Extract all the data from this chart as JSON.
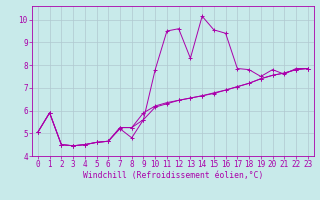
{
  "background_color": "#c8eaea",
  "grid_color": "#b0c8d0",
  "line_color": "#aa00aa",
  "spine_color": "#aa00aa",
  "xlim": [
    -0.5,
    23.5
  ],
  "ylim": [
    4.0,
    10.6
  ],
  "xlabel": "Windchill (Refroidissement éolien,°C)",
  "xticks": [
    0,
    1,
    2,
    3,
    4,
    5,
    6,
    7,
    8,
    9,
    10,
    11,
    12,
    13,
    14,
    15,
    16,
    17,
    18,
    19,
    20,
    21,
    22,
    23
  ],
  "yticks": [
    4,
    5,
    6,
    7,
    8,
    9,
    10
  ],
  "series1": [
    [
      0,
      5.05
    ],
    [
      1,
      5.9
    ],
    [
      2,
      4.5
    ],
    [
      3,
      4.45
    ],
    [
      4,
      4.5
    ],
    [
      5,
      4.6
    ],
    [
      6,
      4.65
    ],
    [
      7,
      5.2
    ],
    [
      8,
      4.8
    ],
    [
      9,
      5.6
    ],
    [
      10,
      7.8
    ],
    [
      11,
      9.5
    ],
    [
      12,
      9.6
    ],
    [
      13,
      8.3
    ],
    [
      14,
      10.15
    ],
    [
      15,
      9.55
    ],
    [
      16,
      9.4
    ],
    [
      17,
      7.85
    ],
    [
      18,
      7.8
    ],
    [
      19,
      7.5
    ],
    [
      20,
      7.8
    ],
    [
      21,
      7.6
    ],
    [
      22,
      7.85
    ],
    [
      23,
      7.85
    ]
  ],
  "series2": [
    [
      0,
      5.05
    ],
    [
      1,
      5.9
    ],
    [
      2,
      4.5
    ],
    [
      3,
      4.45
    ],
    [
      4,
      4.5
    ],
    [
      5,
      4.6
    ],
    [
      6,
      4.65
    ],
    [
      7,
      5.25
    ],
    [
      8,
      5.25
    ],
    [
      9,
      5.9
    ],
    [
      10,
      6.2
    ],
    [
      11,
      6.35
    ],
    [
      12,
      6.45
    ],
    [
      13,
      6.55
    ],
    [
      14,
      6.65
    ],
    [
      15,
      6.75
    ],
    [
      16,
      6.9
    ],
    [
      17,
      7.05
    ],
    [
      18,
      7.2
    ],
    [
      19,
      7.4
    ],
    [
      20,
      7.55
    ],
    [
      21,
      7.65
    ],
    [
      22,
      7.8
    ],
    [
      23,
      7.85
    ]
  ],
  "series3": [
    [
      0,
      5.05
    ],
    [
      1,
      5.9
    ],
    [
      2,
      4.5
    ],
    [
      3,
      4.45
    ],
    [
      4,
      4.5
    ],
    [
      5,
      4.6
    ],
    [
      6,
      4.65
    ],
    [
      7,
      5.25
    ],
    [
      8,
      5.25
    ],
    [
      9,
      5.6
    ],
    [
      10,
      6.15
    ],
    [
      11,
      6.3
    ],
    [
      12,
      6.45
    ],
    [
      13,
      6.55
    ],
    [
      14,
      6.65
    ],
    [
      15,
      6.78
    ],
    [
      16,
      6.9
    ],
    [
      17,
      7.05
    ],
    [
      18,
      7.2
    ],
    [
      19,
      7.4
    ],
    [
      20,
      7.55
    ],
    [
      21,
      7.65
    ],
    [
      22,
      7.8
    ],
    [
      23,
      7.85
    ]
  ],
  "tick_fontsize": 5.5,
  "label_fontsize": 5.8
}
